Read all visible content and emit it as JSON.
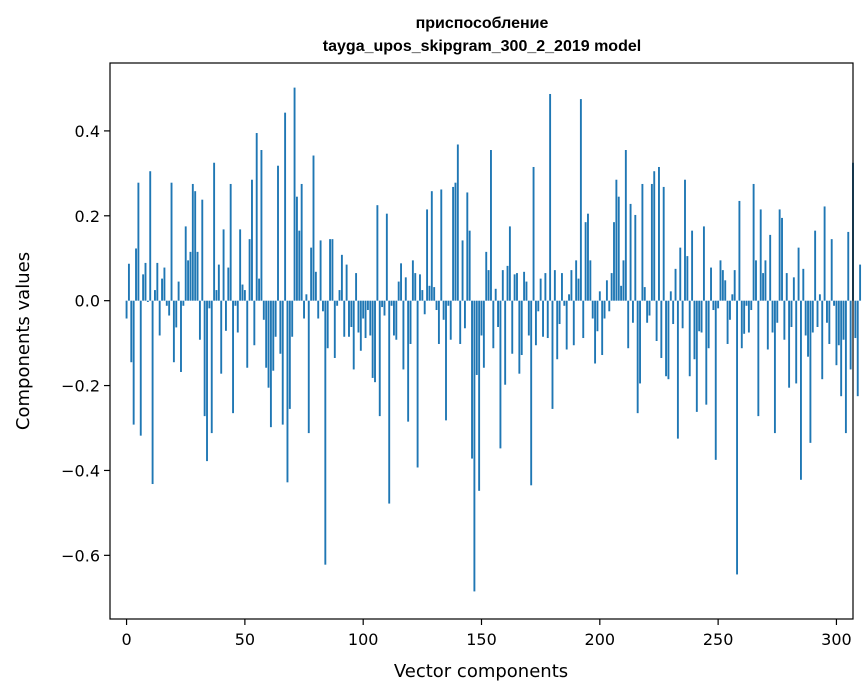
{
  "chart_data": {
    "type": "bar",
    "title": "приспособление",
    "subtitle": "tayga_upos_skipgram_300_2_2019 model",
    "xlabel": "Vector components",
    "ylabel": "Components values",
    "xlim": [
      -7,
      307
    ],
    "ylim": [
      -0.75,
      0.56
    ],
    "xticks": [
      0,
      50,
      100,
      150,
      200,
      250,
      300
    ],
    "yticks": [
      -0.6,
      -0.4,
      -0.2,
      0.0,
      0.2,
      0.4
    ],
    "ytick_labels": [
      "−0.6",
      "−0.4",
      "−0.2",
      "0.0",
      "0.2",
      "0.4"
    ],
    "grid": false,
    "bar_color": "#1f77b4",
    "values": [
      -0.042,
      0.087,
      -0.145,
      -0.292,
      0.123,
      0.278,
      -0.318,
      0.062,
      0.089,
      -0.003,
      0.305,
      -0.432,
      0.025,
      0.089,
      -0.082,
      0.052,
      0.078,
      -0.012,
      -0.035,
      0.278,
      -0.145,
      -0.063,
      0.045,
      -0.168,
      -0.012,
      0.175,
      0.095,
      0.115,
      0.275,
      0.258,
      0.115,
      -0.092,
      0.238,
      -0.272,
      -0.378,
      -0.018,
      -0.312,
      0.325,
      0.025,
      0.085,
      -0.172,
      0.168,
      -0.071,
      0.078,
      0.275,
      -0.265,
      -0.012,
      -0.075,
      0.168,
      0.038,
      0.025,
      -0.158,
      0.145,
      0.285,
      -0.105,
      0.395,
      0.052,
      0.355,
      -0.045,
      -0.158,
      -0.205,
      -0.298,
      -0.165,
      -0.085,
      0.318,
      -0.125,
      -0.292,
      0.443,
      -0.428,
      -0.255,
      -0.085,
      0.502,
      0.245,
      0.165,
      0.275,
      -0.042,
      0.015,
      -0.312,
      0.125,
      0.342,
      0.068,
      -0.042,
      0.142,
      -0.025,
      -0.622,
      -0.112,
      0.145,
      0.145,
      -0.135,
      -0.012,
      0.025,
      0.108,
      -0.085,
      0.085,
      -0.085,
      -0.062,
      -0.162,
      0.065,
      -0.075,
      -0.118,
      -0.042,
      -0.088,
      -0.022,
      -0.082,
      -0.182,
      -0.192,
      0.225,
      -0.272,
      -0.015,
      -0.035,
      0.205,
      -0.478,
      -0.012,
      -0.082,
      -0.092,
      0.045,
      0.088,
      -0.162,
      0.055,
      -0.285,
      -0.102,
      0.095,
      0.065,
      -0.393,
      0.062,
      0.025,
      -0.032,
      0.215,
      0.035,
      0.258,
      0.032,
      -0.022,
      -0.102,
      0.262,
      -0.045,
      -0.282,
      -0.012,
      -0.092,
      0.268,
      0.278,
      0.368,
      -0.102,
      0.142,
      -0.065,
      0.255,
      0.165,
      -0.372,
      -0.685,
      -0.175,
      -0.448,
      -0.082,
      -0.158,
      0.115,
      0.072,
      0.355,
      -0.112,
      0.028,
      -0.062,
      -0.348,
      0.072,
      -0.198,
      0.082,
      0.175,
      -0.125,
      0.062,
      0.065,
      -0.172,
      -0.128,
      0.068,
      0.045,
      -0.082,
      -0.435,
      0.315,
      -0.105,
      -0.025,
      0.052,
      -0.085,
      0.065,
      -0.088,
      0.487,
      -0.255,
      0.072,
      -0.138,
      -0.055,
      0.065,
      -0.012,
      -0.115,
      0.015,
      0.072,
      -0.105,
      0.095,
      0.052,
      0.475,
      -0.088,
      0.185,
      0.205,
      0.095,
      -0.042,
      -0.148,
      -0.072,
      0.022,
      -0.128,
      -0.042,
      0.048,
      -0.025,
      0.065,
      0.185,
      0.285,
      0.245,
      0.035,
      0.095,
      0.355,
      -0.112,
      0.228,
      -0.052,
      0.202,
      -0.265,
      -0.195,
      0.275,
      0.032,
      -0.052,
      -0.035,
      0.275,
      0.305,
      -0.095,
      0.315,
      -0.135,
      0.268,
      -0.178,
      -0.185,
      0.022,
      -0.055,
      0.075,
      -0.325,
      0.125,
      -0.065,
      0.285,
      0.105,
      -0.178,
      0.165,
      -0.138,
      -0.262,
      -0.072,
      -0.075,
      0.175,
      -0.245,
      -0.112,
      0.078,
      -0.022,
      -0.375,
      -0.018,
      0.095,
      0.072,
      0.048,
      -0.102,
      -0.045,
      0.015,
      0.072,
      -0.645,
      0.235,
      -0.112,
      -0.078,
      -0.012,
      -0.075,
      -0.022,
      0.275,
      0.095,
      -0.272,
      0.215,
      0.065,
      0.095,
      -0.115,
      0.155,
      -0.075,
      -0.312,
      -0.052,
      0.215,
      0.195,
      -0.092,
      0.065,
      -0.205,
      -0.062,
      0.055,
      -0.195,
      0.125,
      -0.422,
      0.075,
      -0.082,
      -0.132,
      -0.335,
      -0.075,
      0.165,
      -0.062,
      0.015,
      -0.185,
      0.222,
      -0.052,
      -0.102,
      0.145,
      -0.012,
      -0.152,
      -0.105,
      -0.225,
      -0.092,
      -0.312,
      0.162,
      -0.162,
      0.325,
      -0.088,
      -0.225,
      0.085
    ]
  }
}
